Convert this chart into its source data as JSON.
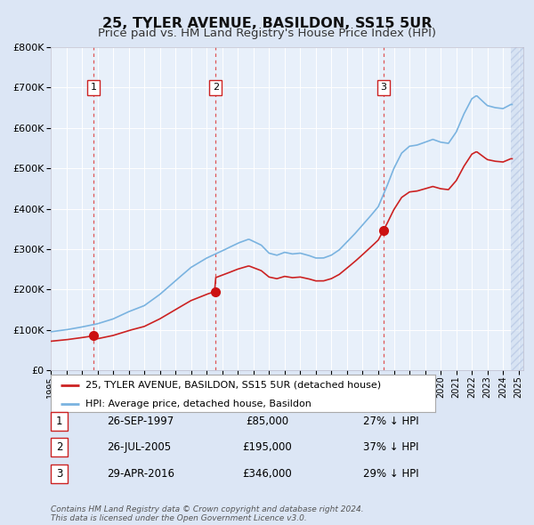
{
  "title": "25, TYLER AVENUE, BASILDON, SS15 5UR",
  "subtitle": "Price paid vs. HM Land Registry's House Price Index (HPI)",
  "title_fontsize": 11.5,
  "subtitle_fontsize": 9.5,
  "bg_color": "#dce6f5",
  "plot_bg_color": "#e8f0fa",
  "grid_color": "#ffffff",
  "legend_label_red": "25, TYLER AVENUE, BASILDON, SS15 5UR (detached house)",
  "legend_label_blue": "HPI: Average price, detached house, Basildon",
  "sale_dates": [
    1997.74,
    2005.57,
    2016.33
  ],
  "sale_prices": [
    85000,
    195000,
    346000
  ],
  "sale_info": [
    {
      "num": "1",
      "date": "26-SEP-1997",
      "price": "£85,000",
      "hpi": "27% ↓ HPI"
    },
    {
      "num": "2",
      "date": "26-JUL-2005",
      "price": "£195,000",
      "hpi": "37% ↓ HPI"
    },
    {
      "num": "3",
      "date": "29-APR-2016",
      "price": "£346,000",
      "hpi": "29% ↓ HPI"
    }
  ],
  "footer": "Contains HM Land Registry data © Crown copyright and database right 2024.\nThis data is licensed under the Open Government Licence v3.0.",
  "ylim": [
    0,
    800000
  ],
  "xlim_start": 1995.0,
  "xlim_end": 2025.3,
  "hatch_start": 2024.5
}
